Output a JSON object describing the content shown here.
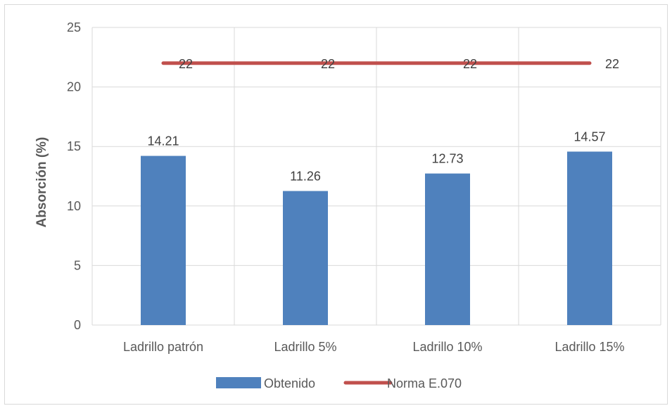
{
  "chart_data": {
    "type": "bar",
    "categories": [
      "Ladrillo patrón",
      "Ladrillo 5%",
      "Ladrillo 10%",
      "Ladrillo 15%"
    ],
    "series": [
      {
        "name": "Obtenido",
        "type": "bar",
        "values": [
          14.21,
          11.26,
          12.73,
          14.57
        ],
        "color": "#4f81bd"
      },
      {
        "name": "Norma E.070",
        "type": "line",
        "values": [
          22,
          22,
          22,
          22
        ],
        "color": "#c0504d"
      }
    ],
    "title": "",
    "xlabel": "",
    "ylabel": "Absorción (%)",
    "ylim": [
      0,
      25
    ],
    "yticks": [
      0,
      5,
      10,
      15,
      20,
      25
    ],
    "grid": true,
    "legend": "bottom"
  }
}
